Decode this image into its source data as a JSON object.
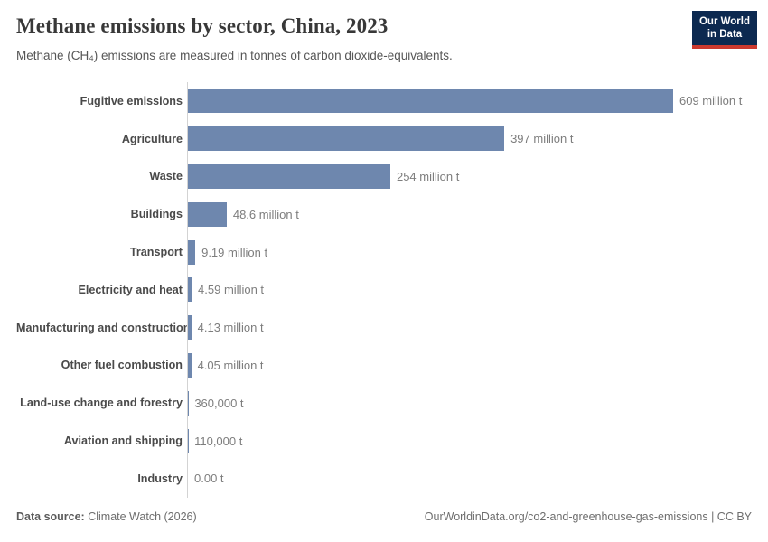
{
  "header": {
    "title": "Methane emissions by sector, China, 2023",
    "subtitle": "Methane (CH₄) emissions are measured in tonnes of carbon dioxide-equivalents."
  },
  "logo": {
    "line1": "Our World",
    "line2": "in Data",
    "background_color": "#0c2950",
    "accent_color": "#cc392e"
  },
  "chart_data": {
    "type": "bar",
    "orientation": "horizontal",
    "title": "Methane emissions by sector, China, 2023",
    "subtitle": "Methane (CH₄) emissions are measured in tonnes of carbon dioxide-equivalents.",
    "categories": [
      "Fugitive emissions",
      "Agriculture",
      "Waste",
      "Buildings",
      "Transport",
      "Electricity and heat",
      "Manufacturing and construction",
      "Other fuel combustion",
      "Land-use change and forestry",
      "Aviation and shipping",
      "Industry"
    ],
    "values_tonnes_co2e_millions": [
      609,
      397,
      254,
      48.6,
      9.19,
      4.59,
      4.13,
      4.05,
      0.36,
      0.11,
      0
    ],
    "value_labels": [
      "609 million t",
      "397 million t",
      "254 million t",
      "48.6 million t",
      "9.19 million t",
      "4.59 million t",
      "4.13 million t",
      "4.05 million t",
      "360,000 t",
      "110,000 t",
      "0.00 t"
    ],
    "xlim": [
      0,
      609
    ],
    "grid": false,
    "legend": "none",
    "bar_color": "#6e87ae"
  },
  "footer": {
    "source_label": "Data source:",
    "source_value": "Climate Watch (2026)",
    "link": "OurWorldinData.org/co2-and-greenhouse-gas-emissions | CC BY"
  }
}
